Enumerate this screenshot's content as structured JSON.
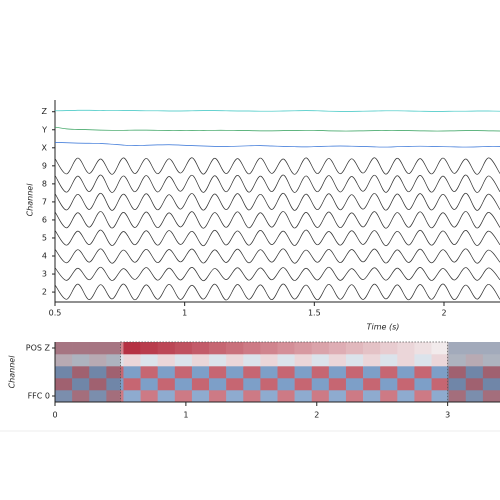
{
  "chart_data": [
    {
      "type": "line",
      "xlabel": "Time (s)",
      "ylabel": "Channel",
      "xlim": [
        0.5,
        2.216
      ],
      "xticks": [
        0.5,
        1,
        1.5,
        2
      ],
      "ylim": [
        1.45,
        12.65
      ],
      "yticks": [
        2,
        3,
        4,
        5,
        6,
        7,
        8,
        9,
        {
          "value": 10,
          "label": "X"
        },
        {
          "value": 11,
          "label": "Y"
        },
        {
          "value": 12,
          "label": "Z"
        }
      ],
      "x": [
        0.5,
        0.544,
        0.588,
        0.632,
        0.676,
        0.72,
        0.764,
        0.808,
        0.852,
        0.896,
        0.94,
        0.984,
        1.028,
        1.072,
        1.116,
        1.16,
        1.204,
        1.248,
        1.292,
        1.336,
        1.38,
        1.424,
        1.468,
        1.512,
        1.556,
        1.6,
        1.644,
        1.688,
        1.732,
        1.776,
        1.82,
        1.864,
        1.908,
        1.952,
        1.996,
        2.04,
        2.084,
        2.128,
        2.172,
        2.216
      ],
      "series": [
        {
          "color": "#333333",
          "values": [
            2.4,
            1.6,
            2.44,
            1.58,
            2.41,
            1.62,
            2.45,
            1.57,
            2.4,
            1.6,
            2.43,
            1.59,
            2.38,
            1.61,
            2.44,
            1.56,
            2.42,
            1.6,
            2.4,
            1.58,
            2.45,
            1.61,
            2.39,
            1.57,
            2.43,
            1.6,
            2.41,
            1.59,
            2.44,
            1.62,
            2.4,
            1.57,
            2.42,
            1.6,
            2.45,
            1.58,
            2.39,
            1.61,
            2.43,
            1.59
          ]
        },
        {
          "color": "#333333",
          "values": [
            3.35,
            2.65,
            3.32,
            2.68,
            3.38,
            2.64,
            3.3,
            2.7,
            3.36,
            2.66,
            3.33,
            2.67,
            3.37,
            2.63,
            3.31,
            2.69,
            3.35,
            2.66,
            3.34,
            2.68,
            3.36,
            2.64,
            3.32,
            2.67,
            3.38,
            2.65,
            3.3,
            2.69,
            3.35,
            2.66,
            3.33,
            2.68,
            3.37,
            2.64,
            3.31,
            2.67,
            3.36,
            2.65,
            3.34,
            2.68
          ]
        },
        {
          "color": "#333333",
          "values": [
            4.38,
            3.62,
            4.35,
            3.66,
            4.4,
            3.6,
            4.33,
            3.65,
            4.37,
            3.63,
            4.36,
            3.67,
            4.39,
            3.61,
            4.34,
            3.64,
            4.38,
            3.62,
            4.35,
            3.66,
            4.4,
            3.6,
            4.33,
            3.65,
            4.37,
            3.63,
            4.36,
            3.67,
            4.39,
            3.61,
            4.34,
            3.64,
            4.38,
            3.62,
            4.35,
            3.66,
            4.4,
            3.6,
            4.33,
            3.65
          ]
        },
        {
          "color": "#333333",
          "values": [
            5.42,
            4.6,
            5.38,
            4.63,
            5.44,
            4.58,
            5.36,
            4.62,
            5.4,
            4.6,
            5.41,
            4.64,
            5.37,
            4.57,
            5.43,
            4.61,
            5.39,
            4.6,
            5.42,
            4.63,
            5.38,
            4.58,
            5.44,
            4.62,
            5.36,
            4.6,
            5.4,
            4.64,
            5.41,
            4.57,
            5.37,
            4.61,
            5.43,
            4.6,
            5.39,
            4.63,
            5.42,
            4.58,
            5.38,
            4.62
          ]
        },
        {
          "color": "#333333",
          "values": [
            6.45,
            5.56,
            6.4,
            5.6,
            6.47,
            5.55,
            6.42,
            5.58,
            6.44,
            5.57,
            6.39,
            5.61,
            6.46,
            5.54,
            6.41,
            5.59,
            6.45,
            5.56,
            6.4,
            5.6,
            6.47,
            5.55,
            6.42,
            5.58,
            6.44,
            5.57,
            6.39,
            5.61,
            6.46,
            5.54,
            6.41,
            5.59,
            6.45,
            5.56,
            6.4,
            5.6,
            6.47,
            5.55,
            6.42,
            5.58
          ]
        },
        {
          "color": "#333333",
          "values": [
            7.46,
            6.55,
            7.42,
            6.58,
            7.48,
            6.53,
            7.43,
            6.57,
            7.45,
            6.56,
            7.4,
            6.6,
            7.47,
            6.54,
            7.44,
            6.57,
            7.46,
            6.55,
            7.42,
            6.58,
            7.48,
            6.53,
            7.43,
            6.57,
            7.45,
            6.56,
            7.4,
            6.6,
            7.47,
            6.54,
            7.44,
            6.57,
            7.46,
            6.55,
            7.42,
            6.58,
            7.48,
            6.53,
            7.43,
            6.57
          ]
        },
        {
          "color": "#333333",
          "values": [
            8.47,
            7.54,
            8.43,
            7.57,
            8.49,
            7.52,
            8.44,
            7.56,
            8.46,
            7.55,
            8.41,
            7.59,
            8.48,
            7.53,
            8.45,
            7.56,
            8.47,
            7.54,
            8.43,
            7.57,
            8.49,
            7.52,
            8.44,
            7.56,
            8.46,
            7.55,
            8.41,
            7.59,
            8.48,
            7.53,
            8.45,
            7.56,
            8.47,
            7.54,
            8.43,
            7.57,
            8.49,
            7.52,
            8.44,
            7.56
          ]
        },
        {
          "color": "#333333",
          "values": [
            9.4,
            8.55,
            9.43,
            8.58,
            9.38,
            8.53,
            9.44,
            8.57,
            9.41,
            8.56,
            9.39,
            8.6,
            9.45,
            8.54,
            9.42,
            8.57,
            9.4,
            8.55,
            9.43,
            8.58,
            9.38,
            8.53,
            9.44,
            8.57,
            9.41,
            8.56,
            9.39,
            8.6,
            9.45,
            8.54,
            9.42,
            8.57,
            9.4,
            8.55,
            9.43,
            8.58,
            9.38,
            8.53,
            9.44,
            8.57
          ]
        },
        {
          "color": "#2f6fd6",
          "values": [
            10.3,
            10.28,
            10.26,
            10.25,
            10.24,
            10.2,
            10.15,
            10.12,
            10.14,
            10.16,
            10.17,
            10.15,
            10.12,
            10.1,
            10.08,
            10.07,
            10.09,
            10.11,
            10.12,
            10.1,
            10.08,
            10.06,
            10.05,
            10.07,
            10.09,
            10.1,
            10.09,
            10.07,
            10.05,
            10.04,
            10.06,
            10.08,
            10.09,
            10.08,
            10.06,
            10.05,
            10.04,
            10.05,
            10.07,
            10.08
          ]
        },
        {
          "color": "#2e9e58",
          "values": [
            11.15,
            11.05,
            11.02,
            11.0,
            10.98,
            10.97,
            10.97,
            10.98,
            10.98,
            10.97,
            10.96,
            10.95,
            10.95,
            10.96,
            10.97,
            10.97,
            10.96,
            10.95,
            10.94,
            10.94,
            10.95,
            10.96,
            10.97,
            10.96,
            10.94,
            10.93,
            10.93,
            10.94,
            10.95,
            10.96,
            10.96,
            10.95,
            10.94,
            10.93,
            10.93,
            10.94,
            10.95,
            10.95,
            10.94,
            10.93
          ]
        },
        {
          "color": "#35c4c0",
          "values": [
            12.05,
            12.06,
            12.08,
            12.08,
            12.07,
            12.07,
            12.06,
            12.06,
            12.05,
            12.05,
            12.04,
            12.04,
            12.05,
            12.06,
            12.06,
            12.05,
            12.04,
            12.04,
            12.03,
            12.03,
            12.04,
            12.05,
            12.06,
            12.05,
            12.03,
            12.02,
            12.02,
            12.03,
            12.04,
            12.05,
            12.05,
            12.04,
            12.03,
            12.02,
            12.02,
            12.03,
            12.03,
            12.04,
            12.04,
            12.03
          ]
        }
      ]
    },
    {
      "type": "heatmap",
      "ylabel": "Channel",
      "xlim": [
        0,
        3.4
      ],
      "xticks": [
        0,
        1,
        2,
        3
      ],
      "ylim": [
        -0.5,
        4.5
      ],
      "yticks": [
        {
          "value": 0,
          "label": "FFC 0"
        },
        {
          "value": 4,
          "label": "POS Z"
        }
      ],
      "clim": [
        -1,
        1
      ],
      "colors": [
        "#4a7ab5",
        "#f5f5f5",
        "#b2283a"
      ],
      "selection": [
        0.5,
        3.0
      ],
      "values": [
        [
          -0.6,
          0.6,
          -0.6,
          0.6,
          -0.6,
          0.6,
          -0.6,
          0.6,
          -0.6,
          0.6,
          -0.6,
          0.6,
          -0.6,
          0.6,
          -0.6,
          0.6,
          -0.6,
          0.6,
          -0.6,
          0.6,
          -0.6,
          0.6,
          -0.6,
          0.6,
          -0.6,
          0.6
        ],
        [
          0.7,
          -0.7,
          0.7,
          -0.7,
          0.7,
          -0.7,
          0.7,
          -0.7,
          0.7,
          -0.7,
          0.7,
          -0.7,
          0.7,
          -0.7,
          0.7,
          -0.7,
          0.7,
          -0.7,
          0.7,
          -0.7,
          0.7,
          -0.7,
          0.7,
          -0.7,
          0.7,
          -0.7
        ],
        [
          -0.7,
          0.7,
          -0.7,
          0.7,
          -0.7,
          0.7,
          -0.7,
          0.7,
          -0.7,
          0.7,
          -0.7,
          0.7,
          -0.7,
          0.7,
          -0.7,
          0.7,
          -0.7,
          0.7,
          -0.7,
          0.7,
          -0.7,
          0.7,
          -0.7,
          0.7,
          -0.7,
          0.7
        ],
        [
          0.15,
          -0.15,
          0.15,
          -0.15,
          0.15,
          -0.15,
          0.15,
          -0.15,
          0.15,
          -0.15,
          0.15,
          -0.15,
          0.15,
          -0.15,
          0.15,
          -0.15,
          0.15,
          -0.15,
          0.15,
          -0.15,
          0.15,
          -0.15,
          0.15,
          -0.15,
          0.15,
          -0.15
        ],
        [
          0.55,
          0.55,
          0.55,
          0.55,
          0.95,
          0.9,
          0.85,
          0.8,
          0.75,
          0.7,
          0.65,
          0.6,
          0.55,
          0.5,
          0.45,
          0.4,
          0.35,
          0.3,
          0.25,
          0.2,
          0.15,
          0.1,
          0.05,
          -0.25,
          -0.25,
          -0.25
        ]
      ]
    }
  ]
}
